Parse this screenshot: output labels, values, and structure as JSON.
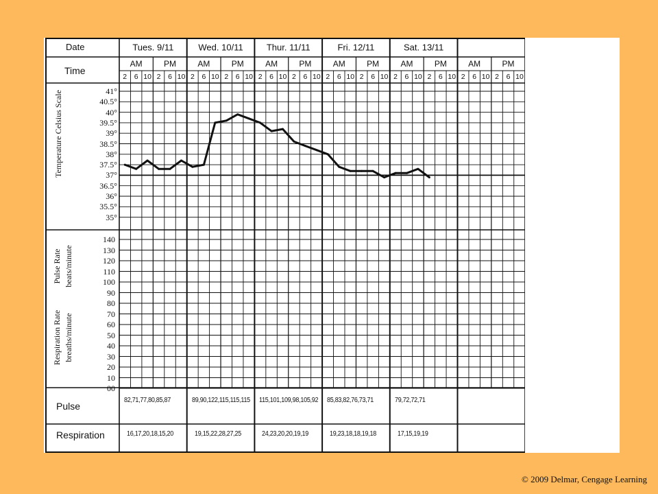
{
  "copyright": "© 2009 Delmar, Cengage Learning",
  "colors": {
    "background": "#FDB95B",
    "sheet": "#FFFFFF",
    "ink": "#111111"
  },
  "labels": {
    "date": "Date",
    "time": "Time",
    "temperature_scale": "Temperature Celsius Scale",
    "pulse_rate": "Pulse Rate",
    "pulse_unit": "beats/minute",
    "respiration_rate": "Respiration Rate",
    "respiration_unit": "breaths/minute",
    "pulse": "Pulse",
    "respiration": "Respiration",
    "am": "AM",
    "pm": "PM"
  },
  "days": [
    {
      "date": "Tues. 9/11",
      "pulse": "82,71,77,80,85,87",
      "respiration": "16,17,20,18,15,20"
    },
    {
      "date": "Wed. 10/11",
      "pulse": "89,90,122,115,115,115",
      "respiration": "19,15,22,28,27,25"
    },
    {
      "date": "Thur. 11/11",
      "pulse": "115,101,109,98,105,92",
      "respiration": "24,23,20,20,19,19"
    },
    {
      "date": "Fri. 12/11",
      "pulse": "85,83,82,76,73,71",
      "respiration": "19,23,18,18,19,18"
    },
    {
      "date": "Sat. 13/11",
      "pulse": "79,72,72,71",
      "respiration": "17,15,19,19"
    },
    {
      "date": "",
      "pulse": "",
      "respiration": ""
    }
  ],
  "hours": [
    "2",
    "6",
    "10",
    "2",
    "6",
    "10"
  ],
  "chart_data": {
    "type": "line",
    "title": "",
    "ylabel": "Temperature Celsius Scale",
    "temperature_ticks": [
      "41°",
      "40.5°",
      "40°",
      "39.5°",
      "39°",
      "38.5°",
      "38°",
      "37.5°",
      "37°",
      "36.5°",
      "36°",
      "35.5°",
      "35°"
    ],
    "rate_ticks": [
      "140",
      "130",
      "120",
      "110",
      "100",
      "90",
      "80",
      "70",
      "60",
      "50",
      "40",
      "30",
      "20",
      "10",
      "00"
    ],
    "ylim": [
      35,
      41
    ],
    "reference_line": 37,
    "series": [
      {
        "values": [
          37.5,
          37.3,
          37.7,
          37.3,
          37.3,
          37.7,
          37.4,
          37.5,
          39.5,
          39.6,
          39.9,
          39.7,
          39.5,
          39.1,
          39.2,
          38.6,
          38.4,
          38.2,
          38.0,
          37.4,
          37.2,
          37.2,
          37.2,
          36.9,
          37.1,
          37.1,
          37.3,
          36.9
        ]
      }
    ]
  }
}
